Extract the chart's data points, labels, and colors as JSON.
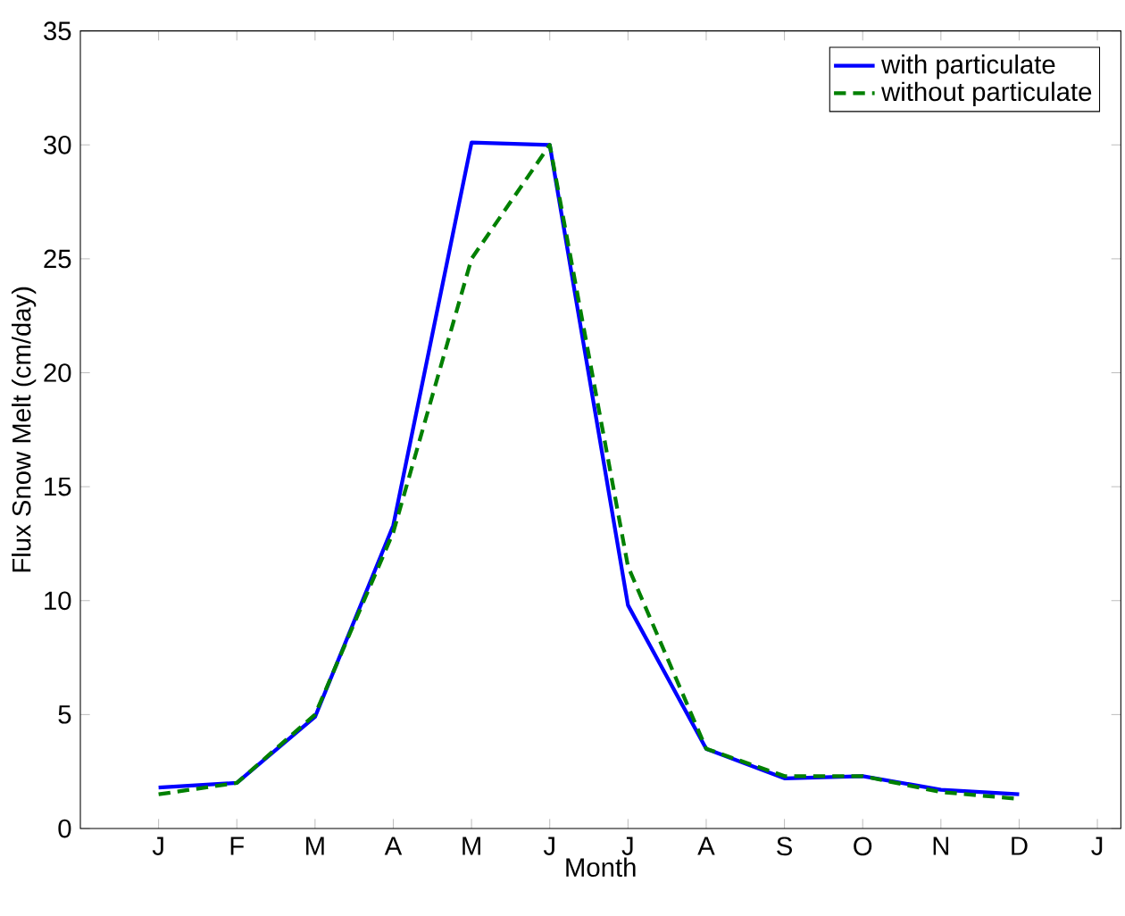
{
  "chart_data": {
    "type": "line",
    "xlabel": "Month",
    "ylabel": "Flux Snow Melt (cm/day)",
    "categories": [
      "J",
      "F",
      "M",
      "A",
      "M",
      "J",
      "J",
      "A",
      "S",
      "O",
      "N",
      "D",
      "J"
    ],
    "series": [
      {
        "name": "with particulate",
        "color": "#0000ff",
        "line_style": "solid",
        "values": [
          1.8,
          2.0,
          4.9,
          13.3,
          30.1,
          30.0,
          9.8,
          3.5,
          2.2,
          2.3,
          1.7,
          1.5,
          null
        ]
      },
      {
        "name": "without particulate",
        "color": "#008000",
        "line_style": "dashed",
        "values": [
          1.5,
          2.0,
          5.0,
          13.0,
          25.0,
          30.0,
          11.5,
          3.5,
          2.3,
          2.3,
          1.6,
          1.3,
          null
        ]
      }
    ],
    "ylim": [
      0,
      35
    ],
    "yticks": [
      0,
      5,
      10,
      15,
      20,
      25,
      30,
      35
    ],
    "grid": false,
    "legend": "top right",
    "marker": "none"
  }
}
